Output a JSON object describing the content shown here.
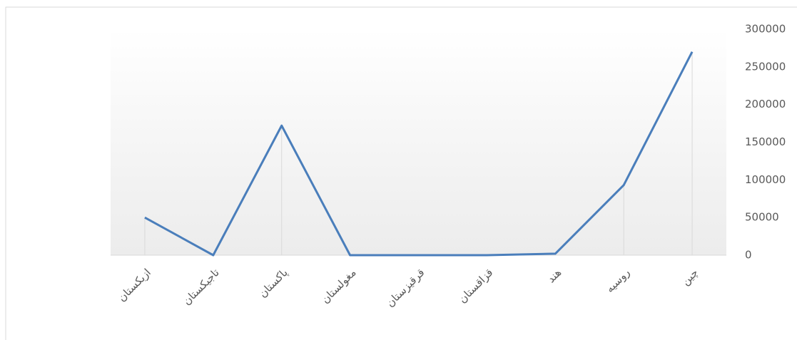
{
  "chart_data": {
    "type": "line",
    "categories": [
      "ازبکستان",
      "تاجیکستان",
      "پاکستان",
      "مغولستان",
      "قرقیزستان",
      "قزاقستان",
      "هند",
      "روسیه",
      "چین"
    ],
    "series": [
      {
        "name": "",
        "color": "#4a7ebb",
        "values": [
          50000,
          0,
          172000,
          0,
          0,
          0,
          2000,
          93000,
          270000
        ]
      }
    ],
    "ylim": [
      0,
      300000
    ],
    "yticks": [
      0,
      50000,
      100000,
      150000,
      200000,
      250000,
      300000
    ],
    "y_axis_side": "right",
    "drop_lines": true
  }
}
